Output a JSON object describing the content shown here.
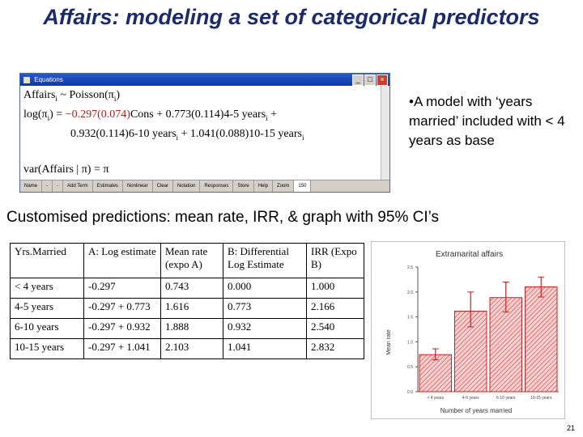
{
  "title": "Affairs: modeling a  set of categorical predictors",
  "equations_window": {
    "title": "Equations",
    "eq1_lhs": "Affairs",
    "eq1_rhs": " ~ Poisson(π",
    "eq2_a": "log(π",
    "eq2_b": ") = ",
    "eq2_c": "−0.297(0.074)",
    "eq2_d": "Cons + 0.773(0.114)",
    "eq2_e": "4-5 years",
    "eq2_f": " +",
    "eq3_a": "0.932(0.114)",
    "eq3_b": "6-10 years",
    "eq3_c": " + 1.041(0.088)",
    "eq3_d": "10-15 years",
    "eq4": "var(Affairs | π) = π",
    "toolbar": [
      "Name",
      "-",
      "-",
      "Add Term",
      "Estimates",
      "Nonlinear",
      "Clear",
      "Notation",
      "Responses",
      "Store",
      "Help",
      "Zoom",
      "150"
    ]
  },
  "bullet_text": "•A model with ‘years married’ included with < 4 years as base",
  "subheading": "Customised predictions: mean rate, IRR,  & graph with 95% CI’s",
  "table": {
    "headers": [
      "Yrs.Married",
      "A: Log estimate",
      "Mean rate (expo A)",
      "B: Differential Log Estimate",
      "IRR (Expo B)"
    ],
    "rows": [
      [
        "< 4 years",
        "-0.297",
        "0.743",
        "0.000",
        "1.000"
      ],
      [
        "4-5 years",
        "-0.297 + 0.773",
        "1.616",
        "0.773",
        "2.166"
      ],
      [
        "6-10 years",
        "-0.297 + 0.932",
        "1.888",
        "0.932",
        "2.540"
      ],
      [
        "10-15 years",
        "-0.297 + 1.041",
        "2.103",
        "1.041",
        "2.832"
      ]
    ]
  },
  "chart_data": {
    "type": "bar",
    "title": "Extramarital affairs",
    "xlabel": "Number of years married",
    "ylabel": "Mean rate",
    "categories": [
      "< 4 years",
      "4-5 years",
      "6-10 years",
      "10-15 years"
    ],
    "values": [
      0.743,
      1.616,
      1.888,
      2.103
    ],
    "ci_low": [
      0.64,
      1.3,
      1.6,
      1.9
    ],
    "ci_high": [
      0.86,
      2.0,
      2.2,
      2.3
    ],
    "yticks": [
      "0.0",
      "0.5",
      "1.0",
      "1.5",
      "2.0",
      "2.5"
    ],
    "ylim": [
      0,
      2.5
    ],
    "bar_color": "#d02020",
    "grid": false
  },
  "page_number": "21"
}
